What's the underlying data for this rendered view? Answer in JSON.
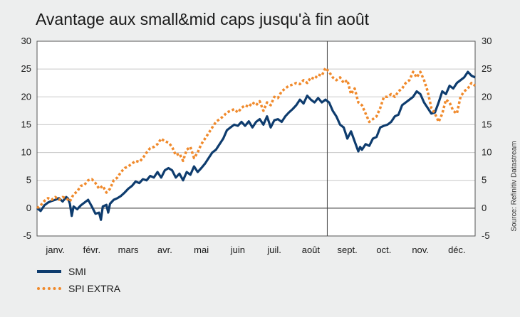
{
  "title": "Avantage aux small&mid caps jusqu'à fin août",
  "source": "Source: Refinitiv Datastream",
  "chart_data": {
    "type": "line",
    "title": "Avantage aux small&mid caps jusqu'à fin août",
    "months": [
      "janv.",
      "févr.",
      "mars",
      "avr.",
      "mai",
      "juin",
      "juil.",
      "août",
      "sept.",
      "oct.",
      "nov.",
      "déc."
    ],
    "x_unit": "months",
    "x_range": [
      0,
      12
    ],
    "ylim": [
      -5,
      30
    ],
    "yticks": [
      -5,
      0,
      5,
      10,
      15,
      20,
      25,
      30
    ],
    "secondary_yticks": [
      -5,
      0,
      5,
      10,
      15,
      20,
      25,
      30
    ],
    "vertical_marker": {
      "x": 7.95
    },
    "legend_position": "bottom-left",
    "grid": true,
    "series": [
      {
        "name": "SMI",
        "color": "#0e3c6e",
        "style": "solid",
        "points": [
          [
            0,
            0
          ],
          [
            0.1,
            -0.5
          ],
          [
            0.2,
            0.5
          ],
          [
            0.3,
            1
          ],
          [
            0.4,
            1.3
          ],
          [
            0.5,
            1.5
          ],
          [
            0.6,
            1.8
          ],
          [
            0.7,
            1.2
          ],
          [
            0.8,
            2
          ],
          [
            0.85,
            1.7
          ],
          [
            0.9,
            0.8
          ],
          [
            0.95,
            -1.4
          ],
          [
            1.0,
            0.3
          ],
          [
            1.1,
            -0.2
          ],
          [
            1.2,
            0.5
          ],
          [
            1.3,
            1
          ],
          [
            1.4,
            1.5
          ],
          [
            1.5,
            0.3
          ],
          [
            1.6,
            -1
          ],
          [
            1.7,
            -0.8
          ],
          [
            1.75,
            -2.1
          ],
          [
            1.8,
            0.3
          ],
          [
            1.9,
            0.6
          ],
          [
            1.95,
            -0.8
          ],
          [
            2.0,
            0.8
          ],
          [
            2.1,
            1.5
          ],
          [
            2.2,
            1.8
          ],
          [
            2.3,
            2.2
          ],
          [
            2.4,
            2.8
          ],
          [
            2.5,
            3.5
          ],
          [
            2.6,
            4
          ],
          [
            2.7,
            4.8
          ],
          [
            2.8,
            4.5
          ],
          [
            2.9,
            5.2
          ],
          [
            3.0,
            5
          ],
          [
            3.1,
            5.8
          ],
          [
            3.2,
            5.5
          ],
          [
            3.3,
            6.5
          ],
          [
            3.4,
            5.5
          ],
          [
            3.5,
            6.8
          ],
          [
            3.6,
            7.2
          ],
          [
            3.7,
            6.8
          ],
          [
            3.8,
            5.5
          ],
          [
            3.9,
            6.2
          ],
          [
            4.0,
            5
          ],
          [
            4.1,
            6.5
          ],
          [
            4.2,
            6
          ],
          [
            4.3,
            7.5
          ],
          [
            4.4,
            6.5
          ],
          [
            4.5,
            7.2
          ],
          [
            4.6,
            8
          ],
          [
            4.7,
            9
          ],
          [
            4.8,
            10
          ],
          [
            4.9,
            10.5
          ],
          [
            5.0,
            11.5
          ],
          [
            5.1,
            12.5
          ],
          [
            5.2,
            14
          ],
          [
            5.3,
            14.5
          ],
          [
            5.4,
            15
          ],
          [
            5.5,
            14.8
          ],
          [
            5.6,
            15.5
          ],
          [
            5.7,
            14.8
          ],
          [
            5.8,
            15.6
          ],
          [
            5.9,
            14.5
          ],
          [
            6.0,
            15.5
          ],
          [
            6.1,
            16
          ],
          [
            6.2,
            15
          ],
          [
            6.3,
            16.5
          ],
          [
            6.4,
            14.5
          ],
          [
            6.5,
            15.8
          ],
          [
            6.6,
            16
          ],
          [
            6.7,
            15.5
          ],
          [
            6.8,
            16.5
          ],
          [
            6.9,
            17.2
          ],
          [
            7.0,
            17.8
          ],
          [
            7.1,
            18.5
          ],
          [
            7.2,
            19.5
          ],
          [
            7.3,
            18.8
          ],
          [
            7.4,
            20.2
          ],
          [
            7.5,
            19.5
          ],
          [
            7.6,
            19
          ],
          [
            7.7,
            19.8
          ],
          [
            7.8,
            19
          ],
          [
            7.9,
            19.5
          ],
          [
            8.0,
            19
          ],
          [
            8.1,
            17.5
          ],
          [
            8.2,
            16.5
          ],
          [
            8.3,
            15
          ],
          [
            8.4,
            14.5
          ],
          [
            8.5,
            12.5
          ],
          [
            8.6,
            13.8
          ],
          [
            8.7,
            12
          ],
          [
            8.8,
            10.2
          ],
          [
            8.85,
            11
          ],
          [
            8.9,
            10.5
          ],
          [
            9.0,
            11.5
          ],
          [
            9.1,
            11.2
          ],
          [
            9.2,
            12.5
          ],
          [
            9.3,
            12.8
          ],
          [
            9.4,
            14.5
          ],
          [
            9.5,
            14.8
          ],
          [
            9.6,
            15
          ],
          [
            9.7,
            15.5
          ],
          [
            9.8,
            16.5
          ],
          [
            9.9,
            16.8
          ],
          [
            10.0,
            18.5
          ],
          [
            10.1,
            19
          ],
          [
            10.2,
            19.5
          ],
          [
            10.3,
            20
          ],
          [
            10.4,
            21
          ],
          [
            10.5,
            20.5
          ],
          [
            10.6,
            19
          ],
          [
            10.7,
            18
          ],
          [
            10.8,
            17
          ],
          [
            10.9,
            17.2
          ],
          [
            11.0,
            19
          ],
          [
            11.1,
            21
          ],
          [
            11.2,
            20.5
          ],
          [
            11.3,
            22
          ],
          [
            11.4,
            21.5
          ],
          [
            11.5,
            22.5
          ],
          [
            11.6,
            23
          ],
          [
            11.7,
            23.5
          ],
          [
            11.8,
            24.5
          ],
          [
            11.9,
            23.8
          ],
          [
            12.0,
            23.5
          ]
        ]
      },
      {
        "name": "SPI EXTRA",
        "color": "#f08a2c",
        "style": "dotted",
        "points": [
          [
            0,
            0
          ],
          [
            0.1,
            0.5
          ],
          [
            0.2,
            1.3
          ],
          [
            0.3,
            1.8
          ],
          [
            0.4,
            1.5
          ],
          [
            0.5,
            2
          ],
          [
            0.6,
            1.5
          ],
          [
            0.7,
            2
          ],
          [
            0.8,
            1.8
          ],
          [
            0.9,
            1.2
          ],
          [
            1.0,
            2.5
          ],
          [
            1.1,
            3
          ],
          [
            1.2,
            4
          ],
          [
            1.3,
            4.2
          ],
          [
            1.4,
            5
          ],
          [
            1.5,
            5.2
          ],
          [
            1.6,
            4.5
          ],
          [
            1.7,
            3.5
          ],
          [
            1.8,
            4
          ],
          [
            1.9,
            2.8
          ],
          [
            2.0,
            3.5
          ],
          [
            2.1,
            5
          ],
          [
            2.2,
            5.5
          ],
          [
            2.3,
            6.5
          ],
          [
            2.4,
            7.2
          ],
          [
            2.5,
            7.5
          ],
          [
            2.6,
            8
          ],
          [
            2.7,
            8.5
          ],
          [
            2.8,
            8.3
          ],
          [
            2.9,
            9
          ],
          [
            3.0,
            10
          ],
          [
            3.1,
            10.8
          ],
          [
            3.2,
            11
          ],
          [
            3.3,
            11.5
          ],
          [
            3.4,
            12.5
          ],
          [
            3.5,
            12
          ],
          [
            3.6,
            11.8
          ],
          [
            3.7,
            11
          ],
          [
            3.8,
            9.5
          ],
          [
            3.9,
            9.8
          ],
          [
            4.0,
            8.5
          ],
          [
            4.1,
            10.5
          ],
          [
            4.2,
            11
          ],
          [
            4.3,
            9
          ],
          [
            4.4,
            10
          ],
          [
            4.5,
            11.5
          ],
          [
            4.6,
            12.5
          ],
          [
            4.7,
            13.5
          ],
          [
            4.8,
            14.5
          ],
          [
            4.9,
            15.5
          ],
          [
            5.0,
            16
          ],
          [
            5.1,
            16.5
          ],
          [
            5.2,
            17.2
          ],
          [
            5.3,
            17.5
          ],
          [
            5.4,
            17.8
          ],
          [
            5.5,
            17.2
          ],
          [
            5.6,
            18
          ],
          [
            5.7,
            18.5
          ],
          [
            5.8,
            18.2
          ],
          [
            5.9,
            19
          ],
          [
            6.0,
            18.5
          ],
          [
            6.1,
            19.2
          ],
          [
            6.2,
            17.5
          ],
          [
            6.3,
            19
          ],
          [
            6.4,
            18.5
          ],
          [
            6.5,
            20
          ],
          [
            6.6,
            19.8
          ],
          [
            6.7,
            21
          ],
          [
            6.8,
            21.5
          ],
          [
            6.9,
            22
          ],
          [
            7.0,
            22.2
          ],
          [
            7.1,
            22.5
          ],
          [
            7.2,
            22.3
          ],
          [
            7.3,
            23
          ],
          [
            7.4,
            22.5
          ],
          [
            7.5,
            23.5
          ],
          [
            7.6,
            23.2
          ],
          [
            7.7,
            24
          ],
          [
            7.8,
            23.8
          ],
          [
            7.9,
            25.2
          ],
          [
            8.0,
            24.5
          ],
          [
            8.1,
            23.5
          ],
          [
            8.2,
            23
          ],
          [
            8.3,
            23.5
          ],
          [
            8.4,
            22.5
          ],
          [
            8.5,
            23
          ],
          [
            8.6,
            20.5
          ],
          [
            8.7,
            21.5
          ],
          [
            8.8,
            19
          ],
          [
            8.9,
            18.5
          ],
          [
            9.0,
            17
          ],
          [
            9.1,
            15.5
          ],
          [
            9.2,
            16
          ],
          [
            9.3,
            16.5
          ],
          [
            9.4,
            18
          ],
          [
            9.5,
            20
          ],
          [
            9.6,
            20
          ],
          [
            9.7,
            20.5
          ],
          [
            9.8,
            20
          ],
          [
            9.9,
            21
          ],
          [
            10.0,
            21.5
          ],
          [
            10.1,
            22.5
          ],
          [
            10.2,
            23
          ],
          [
            10.3,
            24.5
          ],
          [
            10.4,
            23.5
          ],
          [
            10.5,
            24.5
          ],
          [
            10.6,
            23
          ],
          [
            10.7,
            21
          ],
          [
            10.8,
            18
          ],
          [
            10.9,
            17
          ],
          [
            11.0,
            15.5
          ],
          [
            11.1,
            17
          ],
          [
            11.2,
            19.5
          ],
          [
            11.3,
            19
          ],
          [
            11.4,
            17.5
          ],
          [
            11.5,
            17
          ],
          [
            11.6,
            20
          ],
          [
            11.7,
            21
          ],
          [
            11.8,
            21.5
          ],
          [
            11.9,
            22.5
          ],
          [
            12.0,
            22
          ]
        ]
      }
    ]
  }
}
